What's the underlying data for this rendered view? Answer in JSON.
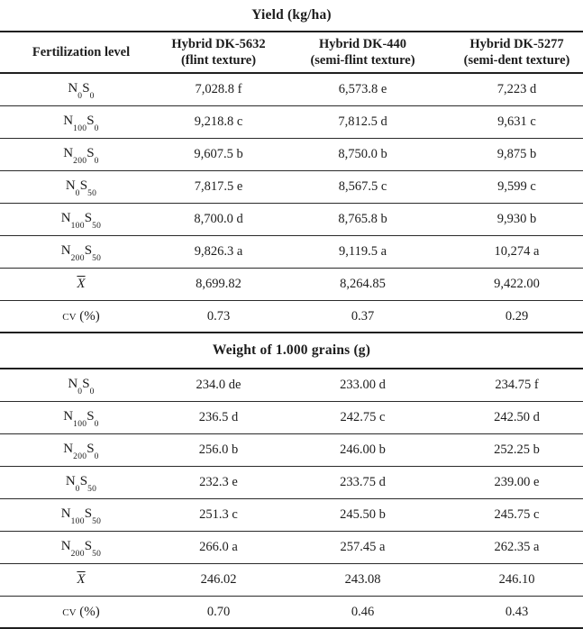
{
  "colors": {
    "text": "#1c1c1c",
    "rule": "#1f1f1f",
    "background": "#ffffff"
  },
  "header": {
    "row_label_column": "Fertilization level",
    "columns": [
      {
        "line1": "Hybrid DK-5632",
        "line2": "(flint texture)"
      },
      {
        "line1": "Hybrid DK-440",
        "line2": "(semi-flint texture)"
      },
      {
        "line1": "Hybrid DK-5277",
        "line2": "(semi-dent texture)"
      }
    ]
  },
  "sections": [
    {
      "title": "Yield (kg/ha)",
      "rows": [
        {
          "label": {
            "type": "ns",
            "n": "0",
            "s": "0"
          },
          "values": [
            "7,028.8 f",
            "6,573.8 e",
            "7,223 d"
          ]
        },
        {
          "label": {
            "type": "ns",
            "n": "100",
            "s": "0"
          },
          "values": [
            "9,218.8 c",
            "7,812.5 d",
            "9,631 c"
          ]
        },
        {
          "label": {
            "type": "ns",
            "n": "200",
            "s": "0"
          },
          "values": [
            "9,607.5 b",
            "8,750.0 b",
            "9,875 b"
          ]
        },
        {
          "label": {
            "type": "ns",
            "n": "0",
            "s": "50"
          },
          "values": [
            "7,817.5 e",
            "8,567.5 c",
            "9,599 c"
          ]
        },
        {
          "label": {
            "type": "ns",
            "n": "100",
            "s": "50"
          },
          "values": [
            "8,700.0 d",
            "8,765.8 b",
            "9,930 b"
          ]
        },
        {
          "label": {
            "type": "ns",
            "n": "200",
            "s": "50"
          },
          "values": [
            "9,826.3 a",
            "9,119.5 a",
            "10,274 a"
          ]
        },
        {
          "label": {
            "type": "mean",
            "text": "X"
          },
          "values": [
            "8,699.82",
            "8,264.85",
            "9,422.00"
          ]
        },
        {
          "label": {
            "type": "cv",
            "text": "cv (%)"
          },
          "values": [
            "0.73",
            "0.37",
            "0.29"
          ]
        }
      ]
    },
    {
      "title": "Weight of 1.000 grains (g)",
      "rows": [
        {
          "label": {
            "type": "ns",
            "n": "0",
            "s": "0"
          },
          "values": [
            "234.0 de",
            "233.00 d",
            "234.75 f"
          ]
        },
        {
          "label": {
            "type": "ns",
            "n": "100",
            "s": "0"
          },
          "values": [
            "236.5 d",
            "242.75 c",
            "242.50 d"
          ]
        },
        {
          "label": {
            "type": "ns",
            "n": "200",
            "s": "0"
          },
          "values": [
            "256.0 b",
            "246.00 b",
            "252.25 b"
          ]
        },
        {
          "label": {
            "type": "ns",
            "n": "0",
            "s": "50"
          },
          "values": [
            "232.3 e",
            "233.75 d",
            "239.00 e"
          ]
        },
        {
          "label": {
            "type": "ns",
            "n": "100",
            "s": "50"
          },
          "values": [
            "251.3 c",
            "245.50 b",
            "245.75 c"
          ]
        },
        {
          "label": {
            "type": "ns",
            "n": "200",
            "s": "50"
          },
          "values": [
            "266.0 a",
            "257.45 a",
            "262.35 a"
          ]
        },
        {
          "label": {
            "type": "mean",
            "text": "X"
          },
          "values": [
            "246.02",
            "243.08",
            "246.10"
          ]
        },
        {
          "label": {
            "type": "cv",
            "text": "cv (%)"
          },
          "values": [
            "0.70",
            "0.46",
            "0.43"
          ]
        }
      ]
    }
  ]
}
